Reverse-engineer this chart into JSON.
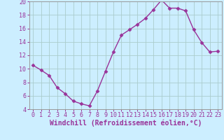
{
  "x": [
    0,
    1,
    2,
    3,
    4,
    5,
    6,
    7,
    8,
    9,
    10,
    11,
    12,
    13,
    14,
    15,
    16,
    17,
    18,
    19,
    20,
    21,
    22,
    23
  ],
  "y": [
    10.5,
    9.8,
    9.0,
    7.2,
    6.3,
    5.2,
    4.8,
    4.5,
    6.7,
    9.6,
    12.5,
    15.0,
    15.8,
    16.6,
    17.5,
    18.8,
    20.2,
    19.0,
    19.0,
    18.6,
    15.8,
    13.9,
    12.5,
    12.6
  ],
  "line_color": "#993399",
  "marker": "D",
  "marker_size": 2.5,
  "bg_color": "#cceeff",
  "grid_color": "#aacccc",
  "xlabel": "Windchill (Refroidissement éolien,°C)",
  "xlabel_color": "#993399",
  "tick_color": "#993399",
  "spine_color": "#999999",
  "ylim": [
    4,
    20
  ],
  "xlim": [
    -0.5,
    23.5
  ],
  "yticks": [
    4,
    6,
    8,
    10,
    12,
    14,
    16,
    18,
    20
  ],
  "xticks": [
    0,
    1,
    2,
    3,
    4,
    5,
    6,
    7,
    8,
    9,
    10,
    11,
    12,
    13,
    14,
    15,
    16,
    17,
    18,
    19,
    20,
    21,
    22,
    23
  ],
  "linewidth": 1.0,
  "tick_fontsize": 6.0,
  "xlabel_fontsize": 7.0
}
